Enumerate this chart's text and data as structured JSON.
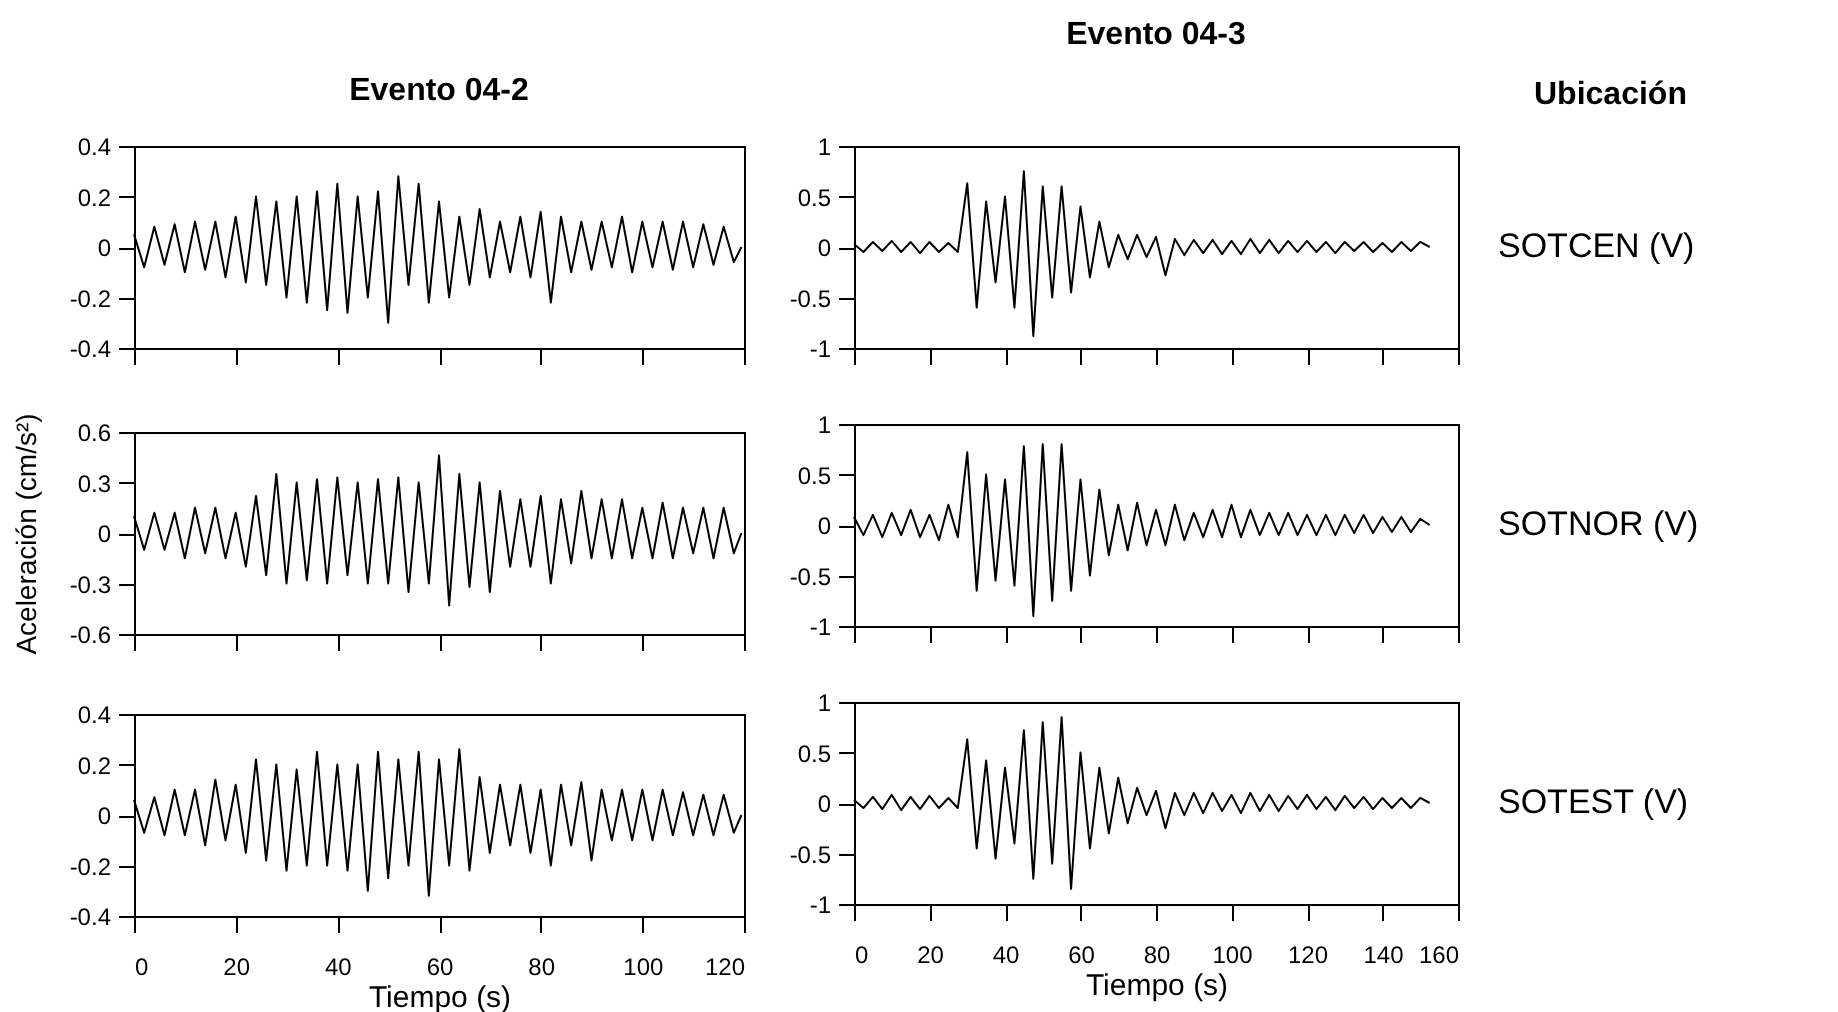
{
  "chart_data": [
    {
      "type": "line",
      "title": "Evento 04-2",
      "x": [
        0,
        2,
        4,
        6,
        8,
        10,
        12,
        14,
        16,
        18,
        20,
        22,
        24,
        26,
        28,
        30,
        32,
        34,
        36,
        38,
        40,
        42,
        44,
        46,
        48,
        50,
        52,
        54,
        56,
        58,
        60,
        62,
        64,
        66,
        68,
        70,
        72,
        74,
        76,
        78,
        80,
        82,
        84,
        86,
        88,
        90,
        92,
        94,
        96,
        98,
        100,
        102,
        104,
        106,
        108,
        110,
        112,
        114,
        116,
        118,
        119.5
      ],
      "series": [
        {
          "color": "#000000",
          "values": [
            0.05,
            -0.08,
            0.08,
            -0.07,
            0.09,
            -0.1,
            0.1,
            -0.09,
            0.1,
            -0.12,
            0.12,
            -0.14,
            0.2,
            -0.15,
            0.18,
            -0.2,
            0.2,
            -0.22,
            0.22,
            -0.25,
            0.25,
            -0.26,
            0.2,
            -0.2,
            0.22,
            -0.3,
            0.28,
            -0.15,
            0.25,
            -0.22,
            0.18,
            -0.2,
            0.12,
            -0.15,
            0.15,
            -0.12,
            0.1,
            -0.1,
            0.12,
            -0.12,
            0.14,
            -0.22,
            0.12,
            -0.1,
            0.1,
            -0.09,
            0.1,
            -0.08,
            0.12,
            -0.1,
            0.1,
            -0.08,
            0.1,
            -0.09,
            0.1,
            -0.08,
            0.09,
            -0.07,
            0.08,
            -0.06,
            0.0
          ]
        }
      ],
      "xlim": [
        0,
        120
      ],
      "xticks": [
        0,
        20,
        40,
        60,
        80,
        100,
        120
      ],
      "ylim": [
        -0.4,
        0.4
      ],
      "yticks": [
        -0.4,
        -0.2,
        0,
        0.2,
        0.4
      ],
      "tick_labels": "y",
      "grid": false,
      "legend": false
    },
    {
      "type": "line",
      "title": "Evento 04-3",
      "annotations": [
        "Ubicación",
        "SOTCEN (V)"
      ],
      "x": [
        0,
        2.5,
        5,
        7.5,
        10,
        12.5,
        15,
        17.5,
        20,
        22.5,
        25,
        27.5,
        30,
        32.5,
        35,
        37.5,
        40,
        42.5,
        45,
        47.5,
        50,
        52.5,
        55,
        57.5,
        60,
        62.5,
        65,
        67.5,
        70,
        72.5,
        75,
        77.5,
        80,
        82.5,
        85,
        87.5,
        90,
        92.5,
        95,
        97.5,
        100,
        102.5,
        105,
        107.5,
        110,
        112.5,
        115,
        117.5,
        120,
        122.5,
        125,
        127.5,
        130,
        132.5,
        135,
        137.5,
        140,
        142.5,
        145,
        147.5,
        150,
        152.5
      ],
      "series": [
        {
          "color": "#000000",
          "values": [
            0.03,
            -0.05,
            0.05,
            -0.04,
            0.06,
            -0.05,
            0.05,
            -0.06,
            0.05,
            -0.05,
            0.04,
            -0.05,
            0.63,
            -0.6,
            0.45,
            -0.35,
            0.5,
            -0.6,
            0.75,
            -0.88,
            0.6,
            -0.5,
            0.6,
            -0.45,
            0.4,
            -0.3,
            0.25,
            -0.2,
            0.12,
            -0.12,
            0.12,
            -0.1,
            0.1,
            -0.28,
            0.08,
            -0.08,
            0.07,
            -0.06,
            0.07,
            -0.07,
            0.06,
            -0.07,
            0.08,
            -0.06,
            0.07,
            -0.06,
            0.06,
            -0.05,
            0.06,
            -0.05,
            0.05,
            -0.06,
            0.05,
            -0.04,
            0.05,
            -0.05,
            0.04,
            -0.05,
            0.05,
            -0.04,
            0.05,
            0.0
          ]
        }
      ],
      "xlim": [
        0,
        160
      ],
      "xticks": [
        0,
        20,
        40,
        60,
        80,
        100,
        120,
        140,
        160
      ],
      "ylim": [
        -1,
        1
      ],
      "yticks": [
        -1,
        -0.5,
        0,
        0.5,
        1
      ],
      "tick_labels": "y",
      "grid": false,
      "legend": false
    },
    {
      "type": "line",
      "ylabel": "Aceleración (cm/s²)",
      "x": [
        0,
        2,
        4,
        6,
        8,
        10,
        12,
        14,
        16,
        18,
        20,
        22,
        24,
        26,
        28,
        30,
        32,
        34,
        36,
        38,
        40,
        42,
        44,
        46,
        48,
        50,
        52,
        54,
        56,
        58,
        60,
        62,
        64,
        66,
        68,
        70,
        72,
        74,
        76,
        78,
        80,
        82,
        84,
        86,
        88,
        90,
        92,
        94,
        96,
        98,
        100,
        102,
        104,
        106,
        108,
        110,
        112,
        114,
        116,
        118,
        119.5
      ],
      "series": [
        {
          "color": "#000000",
          "values": [
            0.1,
            -0.1,
            0.12,
            -0.1,
            0.12,
            -0.15,
            0.15,
            -0.12,
            0.15,
            -0.15,
            0.12,
            -0.2,
            0.22,
            -0.25,
            0.35,
            -0.3,
            0.3,
            -0.28,
            0.32,
            -0.3,
            0.33,
            -0.25,
            0.3,
            -0.3,
            0.32,
            -0.3,
            0.33,
            -0.35,
            0.3,
            -0.3,
            0.46,
            -0.43,
            0.35,
            -0.32,
            0.3,
            -0.35,
            0.25,
            -0.2,
            0.2,
            -0.2,
            0.22,
            -0.3,
            0.2,
            -0.18,
            0.25,
            -0.15,
            0.2,
            -0.15,
            0.2,
            -0.15,
            0.15,
            -0.15,
            0.18,
            -0.15,
            0.15,
            -0.12,
            0.15,
            -0.15,
            0.15,
            -0.12,
            0.0
          ]
        }
      ],
      "xlim": [
        0,
        120
      ],
      "xticks": [
        0,
        20,
        40,
        60,
        80,
        100,
        120
      ],
      "ylim": [
        -0.6,
        0.6
      ],
      "yticks": [
        -0.6,
        -0.3,
        0,
        0.3,
        0.6
      ],
      "tick_labels": "y",
      "grid": false,
      "legend": false
    },
    {
      "type": "line",
      "annotations": [
        "SOTNOR (V)"
      ],
      "x": [
        0,
        2.5,
        5,
        7.5,
        10,
        12.5,
        15,
        17.5,
        20,
        22.5,
        25,
        27.5,
        30,
        32.5,
        35,
        37.5,
        40,
        42.5,
        45,
        47.5,
        50,
        52.5,
        55,
        57.5,
        60,
        62.5,
        65,
        67.5,
        70,
        72.5,
        75,
        77.5,
        80,
        82.5,
        85,
        87.5,
        90,
        92.5,
        95,
        97.5,
        100,
        102.5,
        105,
        107.5,
        110,
        112.5,
        115,
        117.5,
        120,
        122.5,
        125,
        127.5,
        130,
        132.5,
        135,
        137.5,
        140,
        142.5,
        145,
        147.5,
        150,
        152.5
      ],
      "series": [
        {
          "color": "#000000",
          "values": [
            0.08,
            -0.1,
            0.1,
            -0.12,
            0.12,
            -0.1,
            0.15,
            -0.12,
            0.1,
            -0.15,
            0.2,
            -0.12,
            0.72,
            -0.65,
            0.5,
            -0.55,
            0.45,
            -0.6,
            0.78,
            -0.9,
            0.8,
            -0.75,
            0.8,
            -0.65,
            0.45,
            -0.5,
            0.35,
            -0.3,
            0.2,
            -0.25,
            0.22,
            -0.2,
            0.15,
            -0.2,
            0.2,
            -0.15,
            0.12,
            -0.12,
            0.15,
            -0.12,
            0.2,
            -0.12,
            0.15,
            -0.1,
            0.12,
            -0.1,
            0.12,
            -0.1,
            0.1,
            -0.1,
            0.1,
            -0.1,
            0.1,
            -0.08,
            0.1,
            -0.08,
            0.08,
            -0.07,
            0.08,
            -0.07,
            0.06,
            0.0
          ]
        }
      ],
      "xlim": [
        0,
        160
      ],
      "xticks": [
        0,
        20,
        40,
        60,
        80,
        100,
        120,
        140,
        160
      ],
      "ylim": [
        -1,
        1
      ],
      "yticks": [
        -1,
        -0.5,
        0,
        0.5,
        1
      ],
      "tick_labels": "y",
      "grid": false,
      "legend": false
    },
    {
      "type": "line",
      "xlabel": "Tiempo (s)",
      "x": [
        0,
        2,
        4,
        6,
        8,
        10,
        12,
        14,
        16,
        18,
        20,
        22,
        24,
        26,
        28,
        30,
        32,
        34,
        36,
        38,
        40,
        42,
        44,
        46,
        48,
        50,
        52,
        54,
        56,
        58,
        60,
        62,
        64,
        66,
        68,
        70,
        72,
        74,
        76,
        78,
        80,
        82,
        84,
        86,
        88,
        90,
        92,
        94,
        96,
        98,
        100,
        102,
        104,
        106,
        108,
        110,
        112,
        114,
        116,
        118,
        119.5
      ],
      "series": [
        {
          "color": "#000000",
          "values": [
            0.06,
            -0.07,
            0.07,
            -0.08,
            0.1,
            -0.08,
            0.1,
            -0.12,
            0.14,
            -0.1,
            0.12,
            -0.15,
            0.22,
            -0.18,
            0.2,
            -0.22,
            0.18,
            -0.2,
            0.25,
            -0.2,
            0.2,
            -0.22,
            0.2,
            -0.3,
            0.25,
            -0.25,
            0.22,
            -0.2,
            0.25,
            -0.32,
            0.22,
            -0.2,
            0.26,
            -0.22,
            0.15,
            -0.15,
            0.12,
            -0.12,
            0.12,
            -0.15,
            0.1,
            -0.2,
            0.12,
            -0.12,
            0.13,
            -0.18,
            0.1,
            -0.1,
            0.1,
            -0.1,
            0.1,
            -0.1,
            0.1,
            -0.08,
            0.09,
            -0.08,
            0.08,
            -0.08,
            0.08,
            -0.07,
            0.0
          ]
        }
      ],
      "xlim": [
        0,
        120
      ],
      "xticks": [
        0,
        20,
        40,
        60,
        80,
        100,
        120
      ],
      "ylim": [
        -0.4,
        0.4
      ],
      "yticks": [
        -0.4,
        -0.2,
        0,
        0.2,
        0.4
      ],
      "grid": false,
      "legend": false
    },
    {
      "type": "line",
      "xlabel": "Tiempo (s)",
      "annotations": [
        "SOTEST (V)"
      ],
      "x": [
        0,
        2.5,
        5,
        7.5,
        10,
        12.5,
        15,
        17.5,
        20,
        22.5,
        25,
        27.5,
        30,
        32.5,
        35,
        37.5,
        40,
        42.5,
        45,
        47.5,
        50,
        52.5,
        55,
        57.5,
        60,
        62.5,
        65,
        67.5,
        70,
        72.5,
        75,
        77.5,
        80,
        82.5,
        85,
        87.5,
        90,
        92.5,
        95,
        97.5,
        100,
        102.5,
        105,
        107.5,
        110,
        112.5,
        115,
        117.5,
        120,
        122.5,
        125,
        127.5,
        130,
        132.5,
        135,
        137.5,
        140,
        142.5,
        145,
        147.5,
        150,
        152.5
      ],
      "series": [
        {
          "color": "#000000",
          "values": [
            0.03,
            -0.05,
            0.06,
            -0.06,
            0.08,
            -0.07,
            0.06,
            -0.06,
            0.07,
            -0.05,
            0.05,
            -0.05,
            0.63,
            -0.45,
            0.42,
            -0.55,
            0.35,
            -0.4,
            0.72,
            -0.75,
            0.8,
            -0.6,
            0.85,
            -0.85,
            0.5,
            -0.45,
            0.35,
            -0.3,
            0.25,
            -0.2,
            0.15,
            -0.12,
            0.12,
            -0.25,
            0.1,
            -0.12,
            0.1,
            -0.1,
            0.1,
            -0.08,
            0.08,
            -0.1,
            0.1,
            -0.08,
            0.08,
            -0.08,
            0.07,
            -0.06,
            0.08,
            -0.06,
            0.06,
            -0.07,
            0.07,
            -0.05,
            0.06,
            -0.06,
            0.05,
            -0.05,
            0.05,
            -0.05,
            0.05,
            0.0
          ]
        }
      ],
      "xlim": [
        0,
        160
      ],
      "xticks": [
        0,
        20,
        40,
        60,
        80,
        100,
        120,
        140,
        160
      ],
      "ylim": [
        -1,
        1
      ],
      "yticks": [
        -1,
        -0.5,
        0,
        0.5,
        1
      ],
      "grid": false,
      "legend": false
    }
  ]
}
